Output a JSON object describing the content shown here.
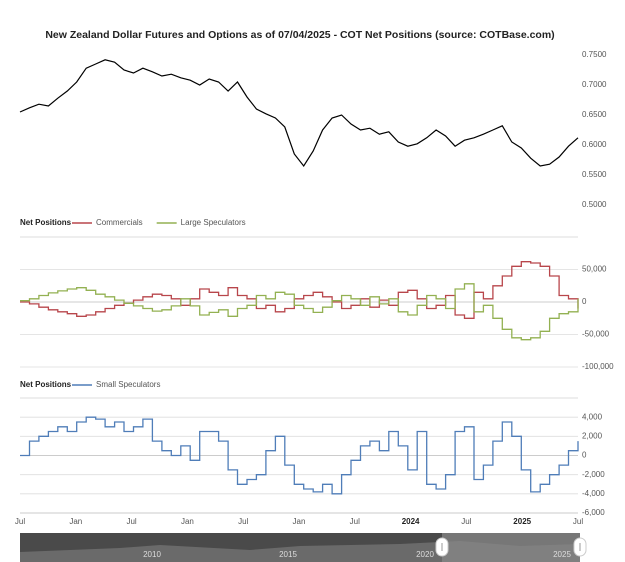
{
  "chart_data": [
    {
      "type": "line",
      "title": "New Zealand Dollar Futures and Options as of 07/04/2025 - COT Net Positions (source: COTBase.com)",
      "ylim": [
        0.5,
        0.75
      ],
      "yticks": [
        {
          "value": 0.5,
          "label": "0.5000"
        },
        {
          "value": 0.55,
          "label": "0.5500"
        },
        {
          "value": 0.6,
          "label": "0.6000"
        },
        {
          "value": 0.65,
          "label": "0.6500"
        },
        {
          "value": 0.7,
          "label": "0.7000"
        },
        {
          "value": 0.75,
          "label": "0.7500"
        }
      ],
      "grid": false,
      "series": [
        {
          "color": "#000000",
          "values": [
            0.655,
            0.662,
            0.668,
            0.665,
            0.678,
            0.69,
            0.705,
            0.728,
            0.735,
            0.742,
            0.738,
            0.725,
            0.72,
            0.728,
            0.722,
            0.715,
            0.718,
            0.712,
            0.708,
            0.7,
            0.71,
            0.705,
            0.69,
            0.705,
            0.68,
            0.66,
            0.652,
            0.645,
            0.63,
            0.585,
            0.565,
            0.59,
            0.625,
            0.645,
            0.65,
            0.635,
            0.625,
            0.628,
            0.618,
            0.622,
            0.605,
            0.598,
            0.602,
            0.612,
            0.625,
            0.615,
            0.598,
            0.608,
            0.612,
            0.618,
            0.625,
            0.632,
            0.605,
            0.595,
            0.578,
            0.565,
            0.568,
            0.58,
            0.598,
            0.612
          ]
        }
      ]
    },
    {
      "type": "line",
      "legend_title": "Net Positions",
      "ylim": [
        -100000,
        100000
      ],
      "yticks": [
        {
          "value": -100000,
          "label": "-100,000"
        },
        {
          "value": -50000,
          "label": "-50,000"
        },
        0,
        {
          "value": 50000,
          "label": "50,000"
        }
      ],
      "grid": true,
      "series": [
        {
          "name": "Commercials",
          "color": "#b8464b",
          "values": [
            0,
            -3000,
            -8000,
            -12000,
            -15000,
            -18000,
            -22000,
            -20000,
            -15000,
            -10000,
            -5000,
            -2000,
            3000,
            8000,
            12000,
            10000,
            5000,
            -5000,
            5000,
            20000,
            15000,
            10000,
            22000,
            10000,
            5000,
            -10000,
            -5000,
            -15000,
            -10000,
            5000,
            10000,
            15000,
            8000,
            0,
            -10000,
            -5000,
            5000,
            -8000,
            3000,
            -5000,
            15000,
            18000,
            5000,
            -10000,
            -5000,
            10000,
            -20000,
            -25000,
            15000,
            5000,
            25000,
            40000,
            55000,
            62000,
            60000,
            55000,
            40000,
            10000,
            5000,
            -10000
          ]
        },
        {
          "name": "Large Speculators",
          "color": "#93b152",
          "values": [
            2000,
            5000,
            10000,
            14000,
            17000,
            20000,
            22000,
            18000,
            12000,
            8000,
            3000,
            -2000,
            -6000,
            -10000,
            -14000,
            -12000,
            -6000,
            5000,
            -6000,
            -20000,
            -16000,
            -12000,
            -22000,
            -10000,
            -5000,
            10000,
            5000,
            15000,
            12000,
            -5000,
            -10000,
            -16000,
            -8000,
            2000,
            10000,
            5000,
            -5000,
            8000,
            -3000,
            5000,
            -15000,
            -20000,
            -5000,
            10000,
            5000,
            -10000,
            20000,
            28000,
            -15000,
            -5000,
            -25000,
            -42000,
            -55000,
            -58000,
            -55000,
            -45000,
            -25000,
            -18000,
            -15000,
            5000
          ]
        }
      ]
    },
    {
      "type": "line",
      "legend_title": "Net Positions",
      "ylim": [
        -6000,
        6000
      ],
      "yticks": [
        {
          "value": -6000,
          "label": "-6,000"
        },
        {
          "value": -4000,
          "label": "-4,000"
        },
        {
          "value": -2000,
          "label": "-2,000"
        },
        0,
        {
          "value": 2000,
          "label": "2,000"
        },
        {
          "value": 4000,
          "label": "4,000"
        }
      ],
      "grid": true,
      "x_tick_labels": [
        "Jul",
        "Jan",
        "Jul",
        "Jan",
        "Jul",
        "Jan",
        "Jul",
        "2024",
        "Jul",
        "2025",
        "Jul"
      ],
      "series": [
        {
          "name": "Small Speculators",
          "color": "#4f7db8",
          "values": [
            0,
            1500,
            2000,
            2500,
            3000,
            2500,
            3500,
            4000,
            3800,
            3000,
            3500,
            2500,
            3000,
            3800,
            1500,
            500,
            0,
            1000,
            -500,
            2500,
            2500,
            1500,
            -1500,
            -3000,
            -2500,
            -2000,
            500,
            2000,
            -1000,
            -3000,
            -3500,
            -3800,
            -3000,
            -4000,
            -2000,
            -500,
            1000,
            1500,
            500,
            2500,
            1000,
            -1500,
            2500,
            -3000,
            -3500,
            -2000,
            2500,
            3000,
            -2500,
            -1000,
            1500,
            3500,
            2000,
            -1500,
            -3800,
            -3000,
            -2000,
            -1000,
            500,
            1500
          ]
        }
      ]
    }
  ],
  "navigator": {
    "labels": [
      "2010",
      "2015",
      "2020",
      "2025"
    ]
  }
}
